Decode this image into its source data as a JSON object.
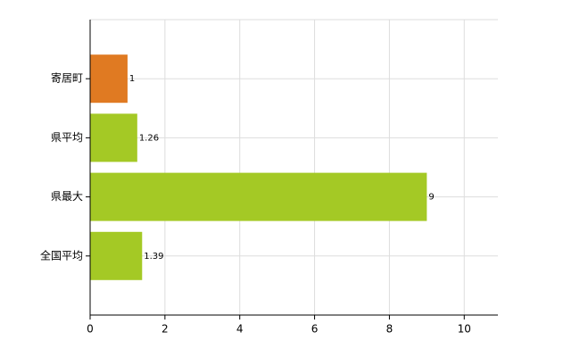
{
  "chart_data": {
    "type": "bar",
    "orientation": "horizontal",
    "categories": [
      "寄居町",
      "県平均",
      "県最大",
      "全国平均"
    ],
    "values": [
      1,
      1.26,
      9,
      1.39
    ],
    "colors": [
      "#e07a22",
      "#a4c925",
      "#a4c925",
      "#a4c925"
    ],
    "xlim": [
      0,
      10.9
    ],
    "xticks": [
      0,
      2,
      4,
      6,
      8,
      10
    ],
    "grid": true
  }
}
